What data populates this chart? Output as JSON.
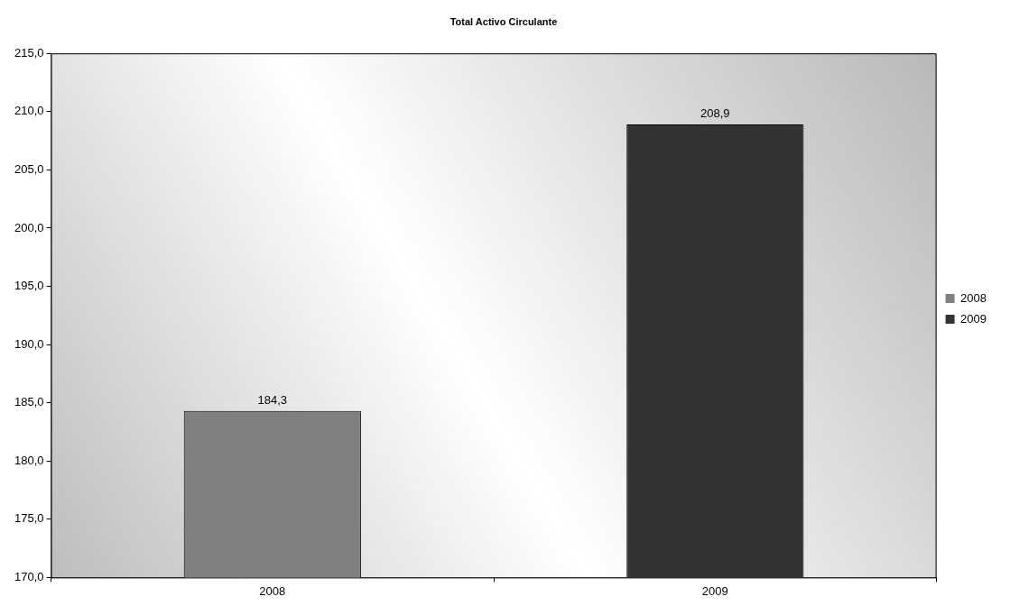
{
  "chart_data": {
    "type": "bar",
    "title": "Total Activo Circulante",
    "categories": [
      "2008",
      "2009"
    ],
    "series": [
      {
        "name": "2008",
        "color": "#808080",
        "values": [
          184.3,
          null
        ],
        "value_labels": [
          "184,3",
          null
        ]
      },
      {
        "name": "2009",
        "color": "#333333",
        "values": [
          null,
          208.9
        ],
        "value_labels": [
          null,
          "208,9"
        ]
      }
    ],
    "ylim": [
      170,
      215
    ],
    "yticks": [
      {
        "value": 170,
        "label": "170,0"
      },
      {
        "value": 175,
        "label": "175,0"
      },
      {
        "value": 180,
        "label": "180,0"
      },
      {
        "value": 185,
        "label": "185,0"
      },
      {
        "value": 190,
        "label": "190,0"
      },
      {
        "value": 195,
        "label": "195,0"
      },
      {
        "value": 200,
        "label": "200,0"
      },
      {
        "value": 205,
        "label": "205,0"
      },
      {
        "value": 210,
        "label": "210,0"
      },
      {
        "value": 215,
        "label": "215,0"
      }
    ],
    "legend": "right",
    "grid": false
  }
}
